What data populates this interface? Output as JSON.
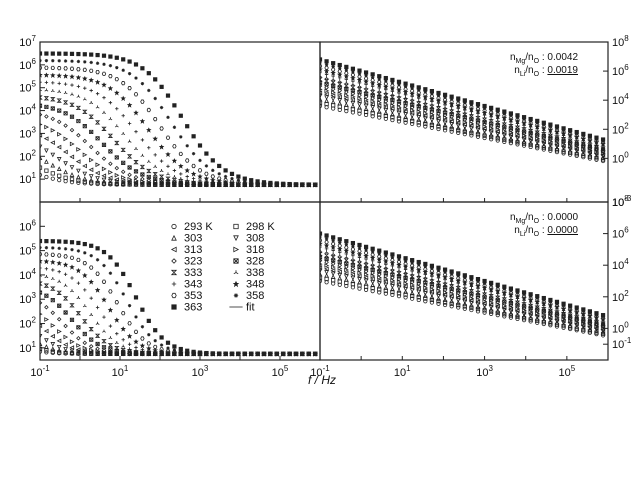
{
  "chart_data": {
    "type": "scatter",
    "xlabel": "f / Hz",
    "x_tick_labels": [
      {
        "base": "10",
        "exp": "-1"
      },
      {
        "base": "10",
        "exp": "1"
      },
      {
        "base": "10",
        "exp": "3"
      },
      {
        "base": "10",
        "exp": "5"
      }
    ],
    "x_log_range": [
      -1,
      6
    ],
    "panels": [
      {
        "id": "top-left",
        "y_log_range": [
          0,
          7
        ],
        "y_side": "left",
        "y_tick_labels": [
          {
            "base": "10",
            "exp": "1"
          },
          {
            "base": "10",
            "exp": "2"
          },
          {
            "base": "10",
            "exp": "3"
          },
          {
            "base": "10",
            "exp": "4"
          },
          {
            "base": "10",
            "exp": "5"
          },
          {
            "base": "10",
            "exp": "6"
          },
          {
            "base": "10",
            "exp": "7"
          }
        ],
        "annotation": []
      },
      {
        "id": "top-right",
        "y_log_range": [
          -3,
          8
        ],
        "y_side": "right",
        "y_tick_labels": [
          {
            "base": "10",
            "exp": "-3"
          },
          {
            "base": "10",
            "exp": "0"
          },
          {
            "base": "10",
            "exp": "2"
          },
          {
            "base": "10",
            "exp": "4"
          },
          {
            "base": "10",
            "exp": "6"
          },
          {
            "base": "10",
            "exp": "8"
          }
        ],
        "annotation": [
          {
            "label_html_parts": [
              "n",
              "Mg",
              "/n",
              "O",
              " : 0.0042"
            ],
            "underline": false
          },
          {
            "label_html_parts": [
              "n",
              "Li",
              "/n",
              "O",
              " : ",
              "0.0019"
            ],
            "underline": true
          }
        ]
      },
      {
        "id": "bottom-left",
        "y_log_range": [
          0.5,
          7
        ],
        "y_side": "left",
        "y_tick_labels": [
          {
            "base": "10",
            "exp": "1"
          },
          {
            "base": "10",
            "exp": "2"
          },
          {
            "base": "10",
            "exp": "3"
          },
          {
            "base": "10",
            "exp": "4"
          },
          {
            "base": "10",
            "exp": "5"
          },
          {
            "base": "10",
            "exp": "6"
          }
        ],
        "annotation": []
      },
      {
        "id": "bottom-right",
        "y_log_range": [
          -2,
          8
        ],
        "y_side": "right",
        "y_tick_labels": [
          {
            "base": "10",
            "exp": "-1"
          },
          {
            "base": "10",
            "exp": "0"
          },
          {
            "base": "10",
            "exp": "2"
          },
          {
            "base": "10",
            "exp": "4"
          },
          {
            "base": "10",
            "exp": "6"
          },
          {
            "base": "10",
            "exp": "8"
          }
        ],
        "annotation": [
          {
            "label_html_parts": [
              "n",
              "Mg",
              "/n",
              "O",
              " : 0.0000"
            ],
            "underline": false
          },
          {
            "label_html_parts": [
              "n",
              "Li",
              "/n",
              "O",
              " : ",
              "0.0000"
            ],
            "underline": true
          }
        ]
      }
    ],
    "legend": {
      "placement": "bottom-left panel, upper middle",
      "entries": [
        {
          "label": "293 K",
          "marker": "circle"
        },
        {
          "label": "298 K",
          "marker": "square"
        },
        {
          "label": "303",
          "marker": "triangle-up"
        },
        {
          "label": "308",
          "marker": "triangle-down"
        },
        {
          "label": "313",
          "marker": "triangle-left"
        },
        {
          "label": "318",
          "marker": "triangle-right"
        },
        {
          "label": "323",
          "marker": "diamond"
        },
        {
          "label": "328",
          "marker": "x-box"
        },
        {
          "label": "333",
          "marker": "hourglass"
        },
        {
          "label": "338",
          "marker": "tri"
        },
        {
          "label": "343",
          "marker": "plus"
        },
        {
          "label": "348",
          "marker": "star"
        },
        {
          "label": "353",
          "marker": "hexagon"
        },
        {
          "label": "358",
          "marker": "asterisk"
        },
        {
          "label": "363",
          "marker": "filled-square"
        },
        {
          "label": "fit",
          "marker": "line"
        }
      ]
    },
    "series_count": 15,
    "series_shapes": {
      "top-left": "plateau ~3e6 at low f for hottest series, drop to ~5 at high f; cooler series start lower",
      "top-right": "roughly linear log-log decrease with slope ~ -0.7; curves span from ~1e6 down to ~0.1",
      "bottom-left": "plateau ~2e5 at low f, steep drop near f~10-100 Hz to ~5 at high f",
      "bottom-right": "roughly linear log-log decrease; curves from ~1e5 down to ~0.1"
    }
  }
}
